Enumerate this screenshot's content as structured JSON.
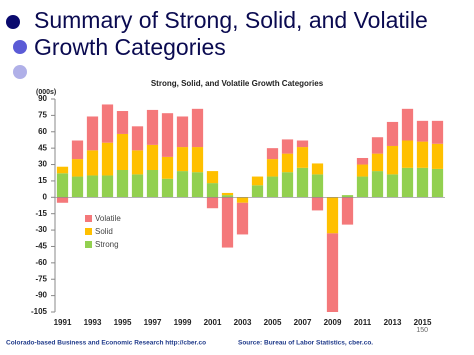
{
  "slide_title": "Summary of Strong, Solid, and Volatile Growth Categories",
  "footer_left": "Colorado-based Business and Economic Research http://cber.co",
  "footer_right": "Source: Bureau of Labor Statistics, cber.co.",
  "page_number": "150",
  "chart_data": {
    "type": "stacked_bar",
    "title": "Strong, Solid, and Volatile Growth Categories",
    "y_label": "(000s)",
    "categories": [
      "1991",
      null,
      "1993",
      null,
      "1995",
      null,
      "1997",
      null,
      "1999",
      null,
      "2001",
      null,
      "2003",
      null,
      "2005",
      null,
      "2007",
      null,
      "2009",
      null,
      "2011",
      null,
      "2013",
      null,
      "2015",
      null
    ],
    "series": [
      {
        "name": "Strong",
        "color": "#92d050",
        "values": [
          22,
          19,
          20,
          20,
          25,
          21,
          25,
          17,
          24,
          23,
          13,
          2,
          0,
          11,
          19,
          23,
          27,
          21,
          0,
          2,
          19,
          24,
          21,
          27,
          27,
          26
        ]
      },
      {
        "name": "Solid",
        "color": "#ffc000",
        "values": [
          6,
          16,
          23,
          30,
          33,
          22,
          23,
          20,
          22,
          23,
          11,
          2,
          -5,
          8,
          16,
          17,
          19,
          10,
          -33,
          0,
          11,
          16,
          26,
          25,
          24,
          23
        ]
      },
      {
        "name": "Volatile",
        "color": "#f4787a",
        "values": [
          -5,
          17,
          31,
          35,
          21,
          22,
          32,
          40,
          28,
          35,
          -10,
          -46,
          -29,
          0,
          10,
          13,
          6,
          -12,
          -72,
          -25,
          6,
          15,
          22,
          29,
          19,
          21
        ]
      }
    ],
    "ylim": [
      -105,
      90
    ],
    "yticks": [
      90,
      75,
      60,
      45,
      30,
      15,
      0,
      -15,
      -30,
      -45,
      -60,
      -75,
      -90,
      -105
    ],
    "legend": "left"
  }
}
